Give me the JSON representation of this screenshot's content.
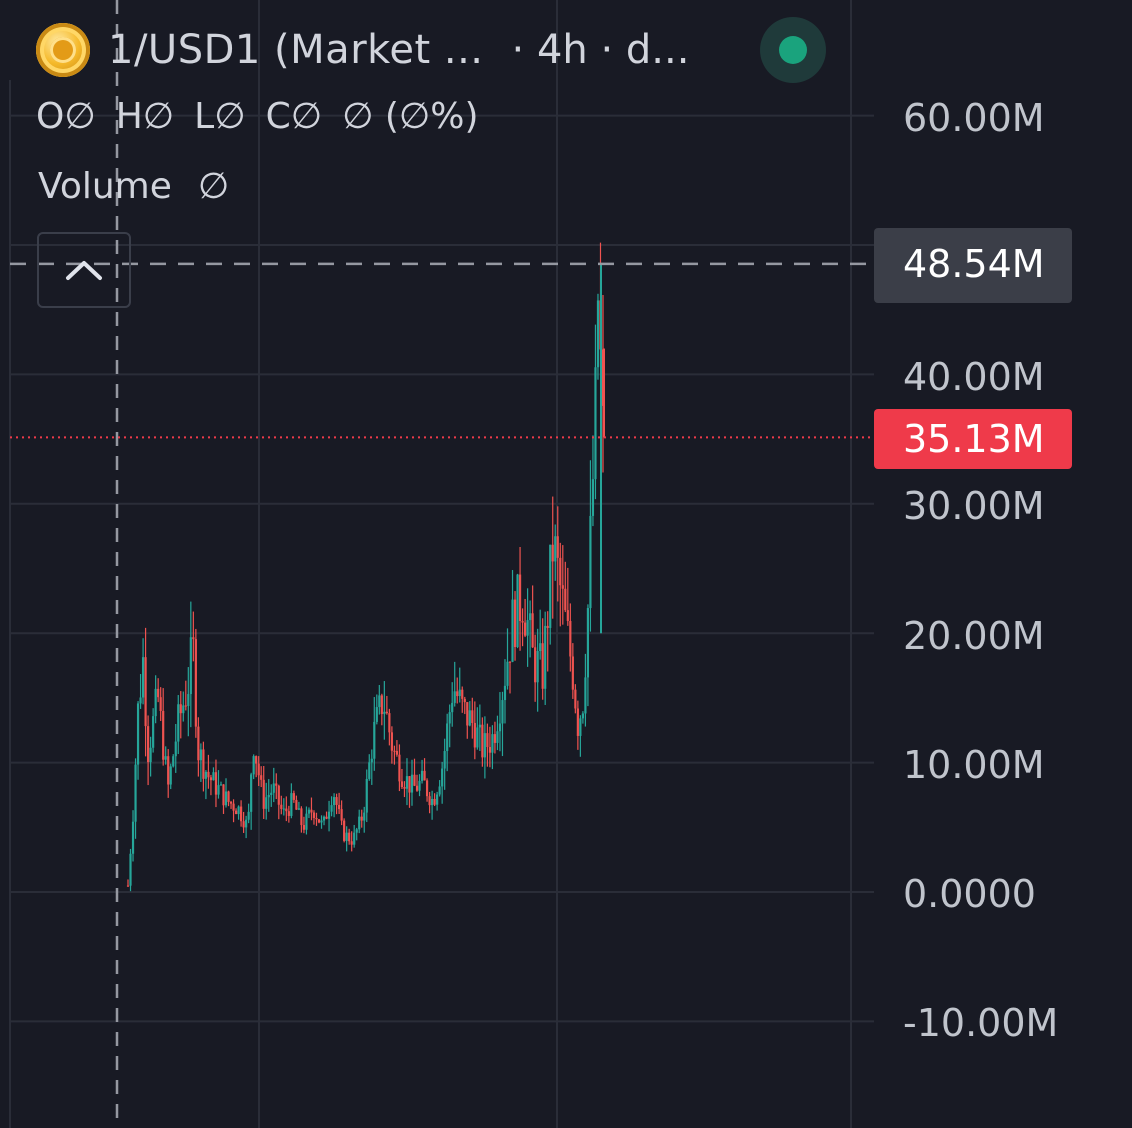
{
  "header": {
    "symbol_title": "1/USD1 (Market ...",
    "meta": "· 4h · d...",
    "coin_icon": "gold-coin-icon",
    "status_color": "#1aa37d"
  },
  "ohlc": {
    "o_label": "O",
    "o_value": "∅",
    "h_label": "H",
    "h_value": "∅",
    "l_label": "L",
    "l_value": "∅",
    "c_label": "C",
    "c_value": "∅",
    "change": "∅ (∅%)"
  },
  "volume": {
    "label": "Volume",
    "value": "∅"
  },
  "price_axis": {
    "labels": [
      "60.00M",
      "40.00M",
      "30.00M",
      "20.00M",
      "10.00M",
      "0.0000",
      "-10.00M"
    ],
    "high_tag": "48.54M",
    "last_tag": "35.13M"
  },
  "colors": {
    "background": "#181a24",
    "grid": "#2a2d38",
    "up": "#26a69a",
    "down": "#ef5350",
    "last_price_line": "#ef3a4a",
    "crosshair": "#9598a1"
  },
  "chart_data": {
    "type": "candlestick",
    "interval": "4h",
    "y_axis": {
      "range": [
        -15000000,
        66000000
      ],
      "ticks": [
        60000000,
        40000000,
        30000000,
        20000000,
        10000000,
        0,
        -10000000
      ]
    },
    "grid": true,
    "high": 48540000,
    "last": 35130000,
    "close_path": [
      [
        0,
        0.5
      ],
      [
        1,
        6
      ],
      [
        2,
        14
      ],
      [
        3,
        18
      ],
      [
        4,
        11
      ],
      [
        6,
        15
      ],
      [
        8,
        8
      ],
      [
        10,
        13
      ],
      [
        12,
        16
      ],
      [
        13,
        19
      ],
      [
        14,
        11
      ],
      [
        16,
        9
      ],
      [
        18,
        8
      ],
      [
        20,
        7
      ],
      [
        22,
        6.5
      ],
      [
        24,
        5
      ],
      [
        25,
        12
      ],
      [
        27,
        7
      ],
      [
        29,
        8
      ],
      [
        31,
        6
      ],
      [
        33,
        7
      ],
      [
        35,
        5
      ],
      [
        37,
        6.5
      ],
      [
        39,
        5
      ],
      [
        41,
        8
      ],
      [
        43,
        4.5
      ],
      [
        45,
        4
      ],
      [
        47,
        6
      ],
      [
        49,
        12
      ],
      [
        51,
        15
      ],
      [
        53,
        11
      ],
      [
        55,
        9
      ],
      [
        57,
        8
      ],
      [
        59,
        8.5
      ],
      [
        61,
        7
      ],
      [
        63,
        10
      ],
      [
        65,
        16
      ],
      [
        67,
        14
      ],
      [
        69,
        13
      ],
      [
        71,
        11
      ],
      [
        73,
        12
      ],
      [
        75,
        16
      ],
      [
        77,
        21
      ],
      [
        79,
        23
      ],
      [
        81,
        18
      ],
      [
        83,
        17
      ],
      [
        85,
        27
      ],
      [
        87,
        22
      ],
      [
        89,
        17
      ],
      [
        90,
        13
      ],
      [
        91,
        15
      ],
      [
        92,
        22
      ],
      [
        93,
        32
      ],
      [
        93.5,
        37
      ],
      [
        94,
        46
      ],
      [
        95,
        35.13
      ]
    ]
  }
}
